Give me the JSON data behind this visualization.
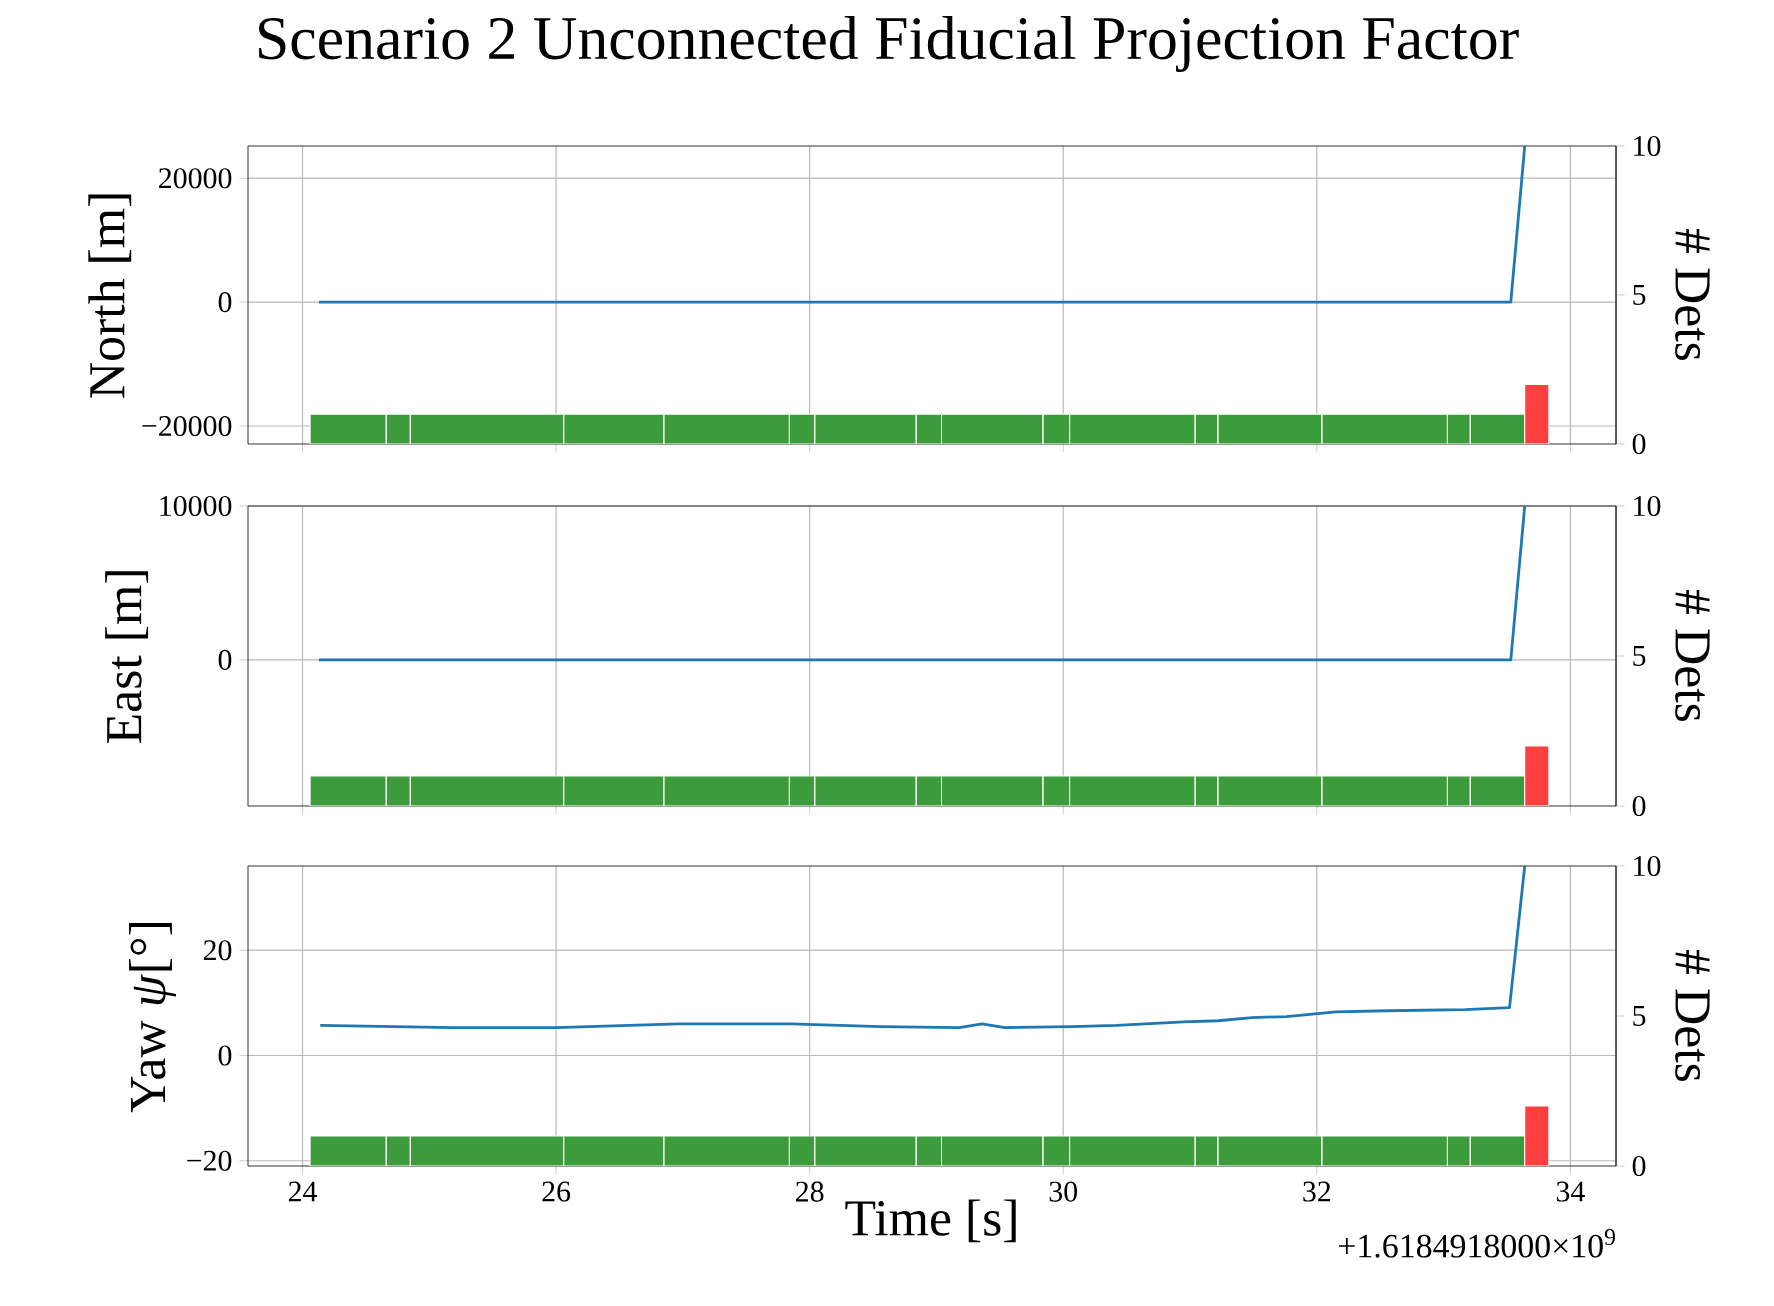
{
  "chart_data": [
    {
      "type": "line",
      "title": "Scenario 2 Unconnected Fiducial Projection Factor",
      "ylabel": "North [m]",
      "y2label": "# Dets",
      "grid": true,
      "tick_labels": "y",
      "xlim": [
        23.57,
        34.36
      ],
      "xticks": [
        24,
        26,
        28,
        30,
        32,
        34
      ],
      "ylim": [
        -22900,
        25200
      ],
      "yticks": [
        {
          "value": -20000,
          "label": "−20000"
        },
        0,
        20000
      ],
      "y2lim": [
        0,
        10
      ],
      "y2ticks": [
        0,
        5,
        10
      ],
      "series": [
        {
          "color": "#1f77b4",
          "x": [
            24.13,
            33.53,
            33.64
          ],
          "values": [
            0,
            0,
            25200
          ]
        },
        {
          "type": "histogram",
          "axis": "y2",
          "color": "#3c9c3c",
          "bins": [
            24.06,
            24.66,
            24.85,
            26.06,
            26.85,
            27.84,
            28.04,
            28.84,
            29.04,
            29.84,
            30.05,
            31.04,
            31.22,
            32.04,
            33.03,
            33.21,
            33.64
          ],
          "values": [
            1,
            1,
            1,
            1,
            1,
            1,
            1,
            1,
            1,
            1,
            1,
            1,
            1,
            1,
            1,
            1
          ]
        },
        {
          "type": "histogram",
          "axis": "y2",
          "color": "#ff4040",
          "bins": [
            33.64,
            33.83
          ],
          "values": [
            2
          ]
        }
      ]
    },
    {
      "type": "line",
      "ylabel": "East [m]",
      "y2label": "# Dets",
      "grid": true,
      "tick_labels": "y",
      "xlim": [
        23.57,
        34.36
      ],
      "xticks": [
        24,
        26,
        28,
        30,
        32,
        34
      ],
      "ylim": [
        -9500,
        10000
      ],
      "yticks": [
        0,
        10000
      ],
      "y2lim": [
        0,
        10
      ],
      "y2ticks": [
        0,
        5,
        10
      ],
      "series": [
        {
          "color": "#1f77b4",
          "x": [
            24.13,
            33.53,
            33.64
          ],
          "values": [
            0,
            0,
            10000
          ]
        },
        {
          "type": "histogram",
          "axis": "y2",
          "color": "#3c9c3c",
          "bins": [
            24.06,
            24.66,
            24.85,
            26.06,
            26.85,
            27.84,
            28.04,
            28.84,
            29.04,
            29.84,
            30.05,
            31.04,
            31.22,
            32.04,
            33.03,
            33.21,
            33.64
          ],
          "values": [
            1,
            1,
            1,
            1,
            1,
            1,
            1,
            1,
            1,
            1,
            1,
            1,
            1,
            1,
            1,
            1
          ]
        },
        {
          "type": "histogram",
          "axis": "y2",
          "color": "#ff4040",
          "bins": [
            33.64,
            33.83
          ],
          "values": [
            2
          ]
        }
      ]
    },
    {
      "type": "line",
      "ylabel": "Yaw *ψ*[°]",
      "y2label": "# Dets",
      "xlabel": "Time [s]",
      "grid": true,
      "annotations": [
        "+1.6184918000×10$^{9}$"
      ],
      "xlim": [
        23.57,
        34.36
      ],
      "xticks": [
        24,
        26,
        28,
        30,
        32,
        34
      ],
      "ylim": [
        -21,
        36
      ],
      "yticks": [
        {
          "value": -20,
          "label": "−20"
        },
        0,
        20
      ],
      "y2lim": [
        0,
        10
      ],
      "y2ticks": [
        0,
        5,
        10
      ],
      "series": [
        {
          "color": "#1f77b4",
          "x": [
            24.14,
            25.19,
            26.0,
            26.96,
            27.85,
            28.56,
            29.18,
            29.36,
            29.54,
            30.07,
            30.42,
            30.95,
            31.22,
            31.49,
            31.76,
            32.15,
            32.55,
            33.17,
            33.52,
            33.64
          ],
          "values": [
            5.7,
            5.3,
            5.3,
            6.0,
            6.0,
            5.5,
            5.3,
            6.0,
            5.3,
            5.5,
            5.7,
            6.4,
            6.6,
            7.2,
            7.4,
            8.3,
            8.5,
            8.7,
            9.1,
            36
          ]
        },
        {
          "type": "histogram",
          "axis": "y2",
          "color": "#3c9c3c",
          "bins": [
            24.06,
            24.66,
            24.85,
            26.06,
            26.85,
            27.84,
            28.04,
            28.84,
            29.04,
            29.84,
            30.05,
            31.04,
            31.22,
            32.04,
            33.03,
            33.21,
            33.64
          ],
          "values": [
            1,
            1,
            1,
            1,
            1,
            1,
            1,
            1,
            1,
            1,
            1,
            1,
            1,
            1,
            1,
            1
          ]
        },
        {
          "type": "histogram",
          "axis": "y2",
          "color": "#ff4040",
          "bins": [
            33.64,
            33.83
          ],
          "values": [
            2
          ]
        }
      ]
    }
  ]
}
